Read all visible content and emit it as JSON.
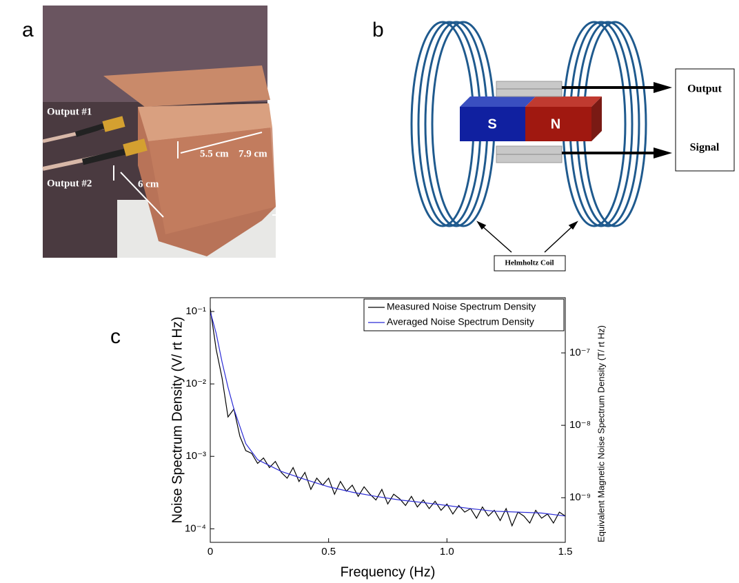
{
  "panel_labels": [
    "a",
    "b",
    "c"
  ],
  "photo": {
    "labels": [
      "Output #1",
      "Output #2",
      "5.5 cm",
      "7.9 cm",
      "6 cm"
    ]
  },
  "diagram": {
    "magnet": [
      "S",
      "N"
    ],
    "outputs": [
      "Output",
      "Signal"
    ],
    "coil_label": "Helmholtz Coil"
  },
  "chart_data": {
    "type": "line",
    "x_label": "Frequency (Hz)",
    "y_label": "Noise Spectrum Density (V/ rt Hz)",
    "y2_label": "Equivalent Magnetic Noise Spectrum Density (T/ rt Hz)",
    "xlim": [
      0,
      1.5
    ],
    "xticks": [
      0,
      0.5,
      {
        "value": 1,
        "label": "1.0"
      },
      1.5
    ],
    "ylim": [
      6.5e-05,
      0.155
    ],
    "log_y": true,
    "yticks": [
      {
        "value": 0.1,
        "label": "10⁻¹"
      },
      {
        "value": 0.01,
        "label": "10⁻²"
      },
      {
        "value": 0.001,
        "label": "10⁻³"
      },
      {
        "value": 0.0001,
        "label": "10⁻⁴"
      }
    ],
    "y2lim": [
      2.42e-10,
      5.78e-07
    ],
    "y2ticks": [
      {
        "value": 1e-07,
        "label": "10⁻⁷"
      },
      {
        "value": 1e-08,
        "label": "10⁻⁸"
      },
      {
        "value": 1e-09,
        "label": "10⁻⁹"
      }
    ],
    "legend": "upper right",
    "series": [
      {
        "name": "Measured Noise Spectrum Density",
        "color": "#000000",
        "x": [
          0,
          0.025,
          0.05,
          0.075,
          0.1,
          0.125,
          0.15,
          0.175,
          0.2,
          0.225,
          0.25,
          0.275,
          0.3,
          0.325,
          0.35,
          0.375,
          0.4,
          0.425,
          0.45,
          0.475,
          0.5,
          0.525,
          0.55,
          0.575,
          0.6,
          0.625,
          0.65,
          0.675,
          0.7,
          0.725,
          0.75,
          0.775,
          0.8,
          0.825,
          0.85,
          0.875,
          0.9,
          0.925,
          0.95,
          0.975,
          1,
          1.025,
          1.05,
          1.075,
          1.1,
          1.125,
          1.15,
          1.175,
          1.2,
          1.225,
          1.25,
          1.275,
          1.3,
          1.325,
          1.35,
          1.375,
          1.4,
          1.425,
          1.45,
          1.475,
          1.5
        ],
        "values": [
          0.11,
          0.03,
          0.012,
          0.0035,
          0.0045,
          0.0019,
          0.0012,
          0.0011,
          0.0008,
          0.00095,
          0.0007,
          0.00085,
          0.0006,
          0.0005,
          0.0007,
          0.00045,
          0.0006,
          0.00035,
          0.0005,
          0.0004,
          0.0005,
          0.0003,
          0.00045,
          0.00033,
          0.0004,
          0.00028,
          0.00038,
          0.0003,
          0.00025,
          0.00035,
          0.00022,
          0.0003,
          0.00026,
          0.00021,
          0.00028,
          0.0002,
          0.00025,
          0.00019,
          0.00024,
          0.00018,
          0.00022,
          0.00016,
          0.00021,
          0.00017,
          0.00019,
          0.00014,
          0.0002,
          0.00015,
          0.00018,
          0.00013,
          0.00019,
          0.00011,
          0.00017,
          0.00015,
          0.00012,
          0.00018,
          0.00014,
          0.00016,
          0.00012,
          0.00017,
          0.00015
        ]
      },
      {
        "name": "Averaged Noise Spectrum Density",
        "color": "#2b2bd6",
        "x": [
          0,
          0.025,
          0.05,
          0.075,
          0.1,
          0.15,
          0.2,
          0.3,
          0.4,
          0.5,
          0.6,
          0.7,
          0.8,
          0.9,
          1,
          1.1,
          1.2,
          1.3,
          1.4,
          1.5
        ],
        "values": [
          0.1,
          0.05,
          0.02,
          0.009,
          0.0045,
          0.0015,
          0.0009,
          0.00062,
          0.00048,
          0.00038,
          0.00032,
          0.00028,
          0.00025,
          0.00023,
          0.00021,
          0.00019,
          0.000175,
          0.00017,
          0.000165,
          0.00015
        ]
      }
    ]
  }
}
